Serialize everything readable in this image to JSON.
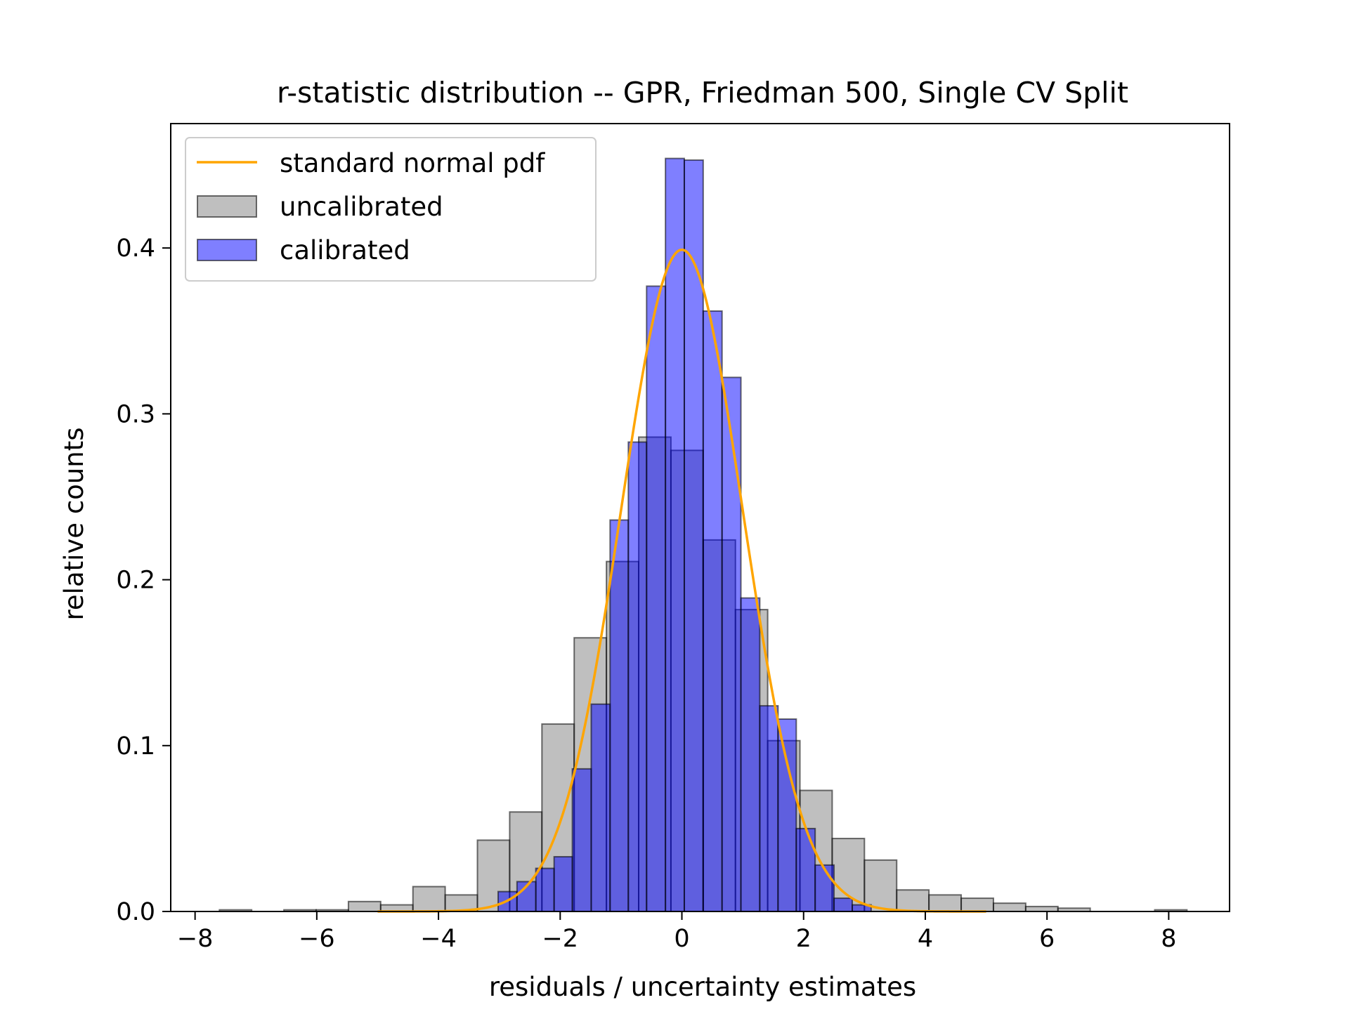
{
  "chart_data": {
    "type": "bar",
    "title": "r-statistic distribution -- GPR, Friedman 500, Single CV Split",
    "xlabel": "residuals / uncertainty estimates",
    "ylabel": "relative counts",
    "xlim": [
      -8.4,
      9.0
    ],
    "ylim": [
      0,
      0.475
    ],
    "xticks": [
      -8,
      -6,
      -4,
      -2,
      0,
      2,
      4,
      6,
      8
    ],
    "xtick_labels": [
      "−8",
      "−6",
      "−4",
      "−2",
      "0",
      "2",
      "4",
      "6",
      "8"
    ],
    "yticks": [
      0.0,
      0.1,
      0.2,
      0.3,
      0.4
    ],
    "ytick_labels": [
      "0.0",
      "0.1",
      "0.2",
      "0.3",
      "0.4"
    ],
    "grid": false,
    "legend": {
      "placement": "top-left",
      "entries": [
        {
          "label": "standard normal pdf",
          "kind": "line",
          "color": "#FFA500"
        },
        {
          "label": "uncalibrated",
          "kind": "patch",
          "color": "#808080"
        },
        {
          "label": "calibrated",
          "kind": "patch",
          "color": "#0000FF"
        }
      ]
    },
    "series": [
      {
        "name": "uncalibrated",
        "kind": "histogram",
        "color": "#808080",
        "opacity": 0.5,
        "bins": [
          {
            "x0": -7.6,
            "x1": -7.07,
            "y": 0.001
          },
          {
            "x0": -7.07,
            "x1": -6.54,
            "y": 0.0
          },
          {
            "x0": -6.54,
            "x1": -6.01,
            "y": 0.001
          },
          {
            "x0": -6.01,
            "x1": -5.48,
            "y": 0.001
          },
          {
            "x0": -5.48,
            "x1": -4.95,
            "y": 0.006
          },
          {
            "x0": -4.95,
            "x1": -4.42,
            "y": 0.004
          },
          {
            "x0": -4.42,
            "x1": -3.89,
            "y": 0.015
          },
          {
            "x0": -3.89,
            "x1": -3.36,
            "y": 0.01
          },
          {
            "x0": -3.36,
            "x1": -2.83,
            "y": 0.043
          },
          {
            "x0": -2.83,
            "x1": -2.3,
            "y": 0.06
          },
          {
            "x0": -2.3,
            "x1": -1.77,
            "y": 0.113
          },
          {
            "x0": -1.77,
            "x1": -1.24,
            "y": 0.165
          },
          {
            "x0": -1.24,
            "x1": -0.71,
            "y": 0.211
          },
          {
            "x0": -0.71,
            "x1": -0.18,
            "y": 0.286
          },
          {
            "x0": -0.18,
            "x1": 0.35,
            "y": 0.278
          },
          {
            "x0": 0.35,
            "x1": 0.88,
            "y": 0.224
          },
          {
            "x0": 0.88,
            "x1": 1.41,
            "y": 0.182
          },
          {
            "x0": 1.41,
            "x1": 1.94,
            "y": 0.103
          },
          {
            "x0": 1.94,
            "x1": 2.47,
            "y": 0.073
          },
          {
            "x0": 2.47,
            "x1": 3.0,
            "y": 0.044
          },
          {
            "x0": 3.0,
            "x1": 3.53,
            "y": 0.031
          },
          {
            "x0": 3.53,
            "x1": 4.06,
            "y": 0.013
          },
          {
            "x0": 4.06,
            "x1": 4.59,
            "y": 0.01
          },
          {
            "x0": 4.59,
            "x1": 5.12,
            "y": 0.008
          },
          {
            "x0": 5.12,
            "x1": 5.65,
            "y": 0.005
          },
          {
            "x0": 5.65,
            "x1": 6.18,
            "y": 0.003
          },
          {
            "x0": 6.18,
            "x1": 6.71,
            "y": 0.002
          },
          {
            "x0": 6.71,
            "x1": 7.24,
            "y": 0.0
          },
          {
            "x0": 7.24,
            "x1": 7.77,
            "y": 0.0
          },
          {
            "x0": 7.77,
            "x1": 8.3,
            "y": 0.001
          }
        ]
      },
      {
        "name": "calibrated",
        "kind": "histogram",
        "color": "#0000FF",
        "opacity": 0.5,
        "bins": [
          {
            "x0": -3.02,
            "x1": -2.71,
            "y": 0.012
          },
          {
            "x0": -2.71,
            "x1": -2.4,
            "y": 0.018
          },
          {
            "x0": -2.4,
            "x1": -2.1,
            "y": 0.026
          },
          {
            "x0": -2.1,
            "x1": -1.8,
            "y": 0.033
          },
          {
            "x0": -1.8,
            "x1": -1.49,
            "y": 0.086
          },
          {
            "x0": -1.49,
            "x1": -1.18,
            "y": 0.125
          },
          {
            "x0": -1.18,
            "x1": -0.88,
            "y": 0.236
          },
          {
            "x0": -0.88,
            "x1": -0.58,
            "y": 0.283
          },
          {
            "x0": -0.58,
            "x1": -0.27,
            "y": 0.377
          },
          {
            "x0": -0.27,
            "x1": 0.04,
            "y": 0.454
          },
          {
            "x0": 0.04,
            "x1": 0.35,
            "y": 0.453
          },
          {
            "x0": 0.35,
            "x1": 0.66,
            "y": 0.362
          },
          {
            "x0": 0.66,
            "x1": 0.97,
            "y": 0.322
          },
          {
            "x0": 0.97,
            "x1": 1.28,
            "y": 0.189
          },
          {
            "x0": 1.28,
            "x1": 1.58,
            "y": 0.124
          },
          {
            "x0": 1.58,
            "x1": 1.88,
            "y": 0.116
          },
          {
            "x0": 1.88,
            "x1": 2.19,
            "y": 0.05
          },
          {
            "x0": 2.19,
            "x1": 2.5,
            "y": 0.028
          },
          {
            "x0": 2.5,
            "x1": 2.8,
            "y": 0.008
          },
          {
            "x0": 2.8,
            "x1": 3.11,
            "y": 0.004
          }
        ]
      },
      {
        "name": "standard normal pdf",
        "kind": "line",
        "color": "#FFA500",
        "x_range": [
          -5,
          5
        ],
        "function": "standard normal pdf"
      }
    ]
  }
}
